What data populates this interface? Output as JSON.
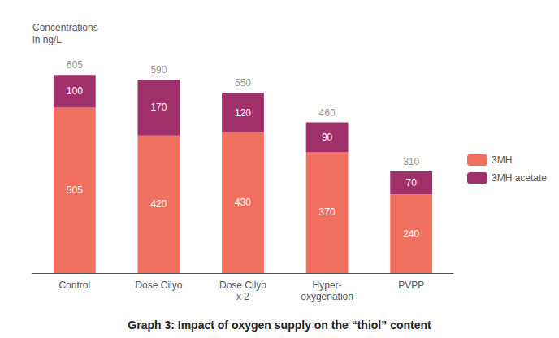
{
  "chart_data": {
    "type": "bar",
    "title": "Graph 3: Impact of oxygen supply on the “thiol” content",
    "ylabel": "Concentrations\nin ng/L",
    "categories": [
      "Control",
      "Dose Cilyo",
      "Dose Cilyo\nx 2",
      "Hyper-\noxygenation",
      "PVPP"
    ],
    "series": [
      {
        "name": "3MH",
        "color": "#f07060",
        "values": [
          505,
          420,
          430,
          370,
          240
        ]
      },
      {
        "name": "3MH acetate",
        "color": "#a0306a",
        "values": [
          100,
          170,
          120,
          90,
          70
        ]
      }
    ],
    "totals": [
      605,
      590,
      550,
      460,
      310
    ],
    "stacked": true,
    "data_labels": true,
    "ylim": [
      0,
      660
    ],
    "tick_labels": "x",
    "grid": false,
    "legend": "right"
  }
}
